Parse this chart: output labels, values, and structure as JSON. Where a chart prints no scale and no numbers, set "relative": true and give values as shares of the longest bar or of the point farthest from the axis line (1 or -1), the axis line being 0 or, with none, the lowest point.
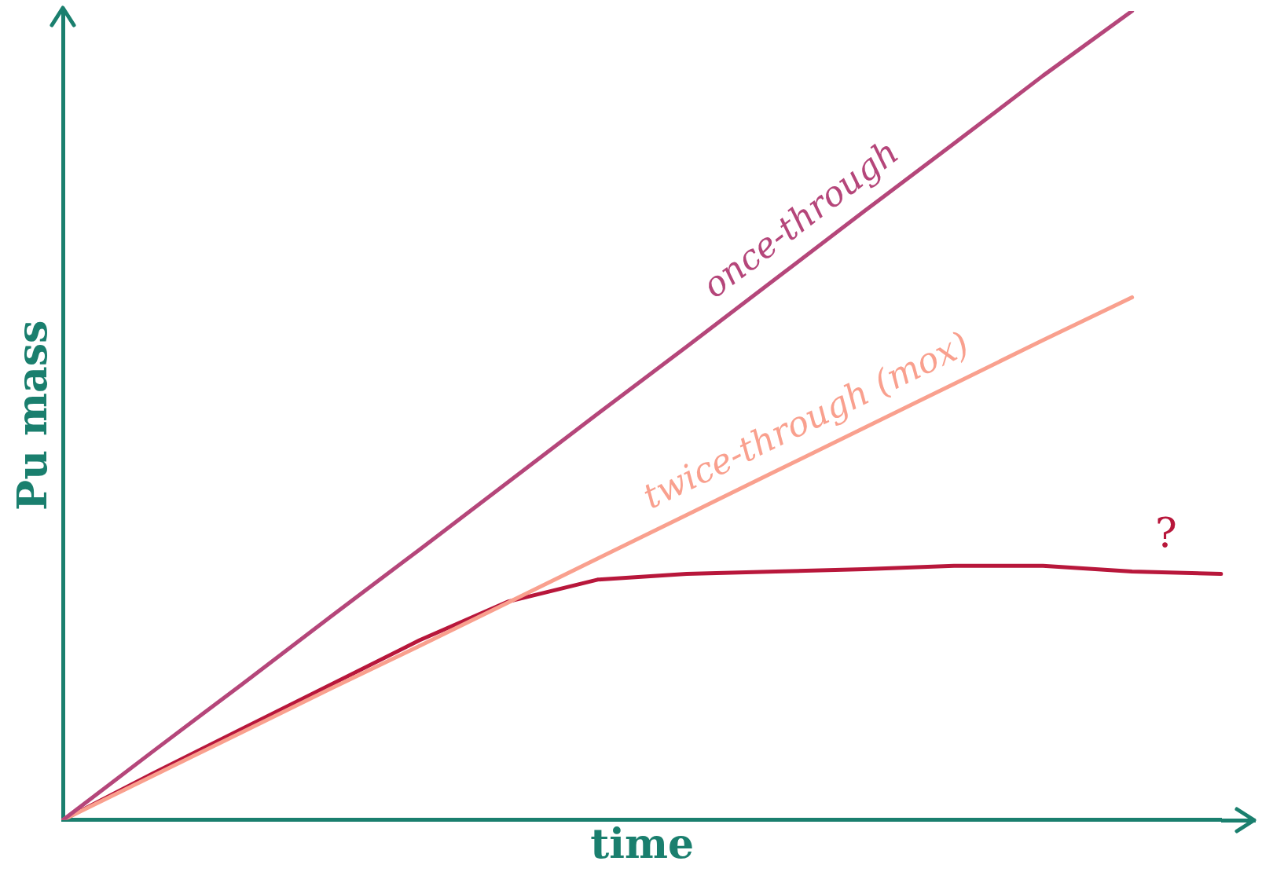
{
  "chart_data": {
    "type": "line",
    "relative": true,
    "xlabel": "time",
    "ylabel": "Pu mass",
    "categories": [
      null,
      null,
      null,
      null,
      null,
      null,
      null,
      null,
      null,
      null,
      null,
      null,
      null,
      null
    ],
    "series": [
      {
        "name": "once-through",
        "color": "#b5467a",
        "values": [
          0,
          0.084,
          0.167,
          0.251,
          0.334,
          0.418,
          0.502,
          0.585,
          0.669,
          0.753,
          0.836,
          0.92,
          1.0,
          null
        ]
      },
      {
        "name": "twice-through (mox)",
        "color": "#f9a08e",
        "values": [
          0,
          0.054,
          0.108,
          0.162,
          0.215,
          0.269,
          0.323,
          0.377,
          0.431,
          0.485,
          0.539,
          0.593,
          0.646,
          null
        ]
      },
      {
        "color": "#b8173b",
        "values": [
          0,
          0.057,
          0.112,
          0.167,
          0.222,
          0.27,
          0.297,
          0.304,
          0.307,
          0.31,
          0.314,
          0.314,
          0.307,
          0.304
        ]
      }
    ],
    "annotations": [
      "?"
    ]
  }
}
